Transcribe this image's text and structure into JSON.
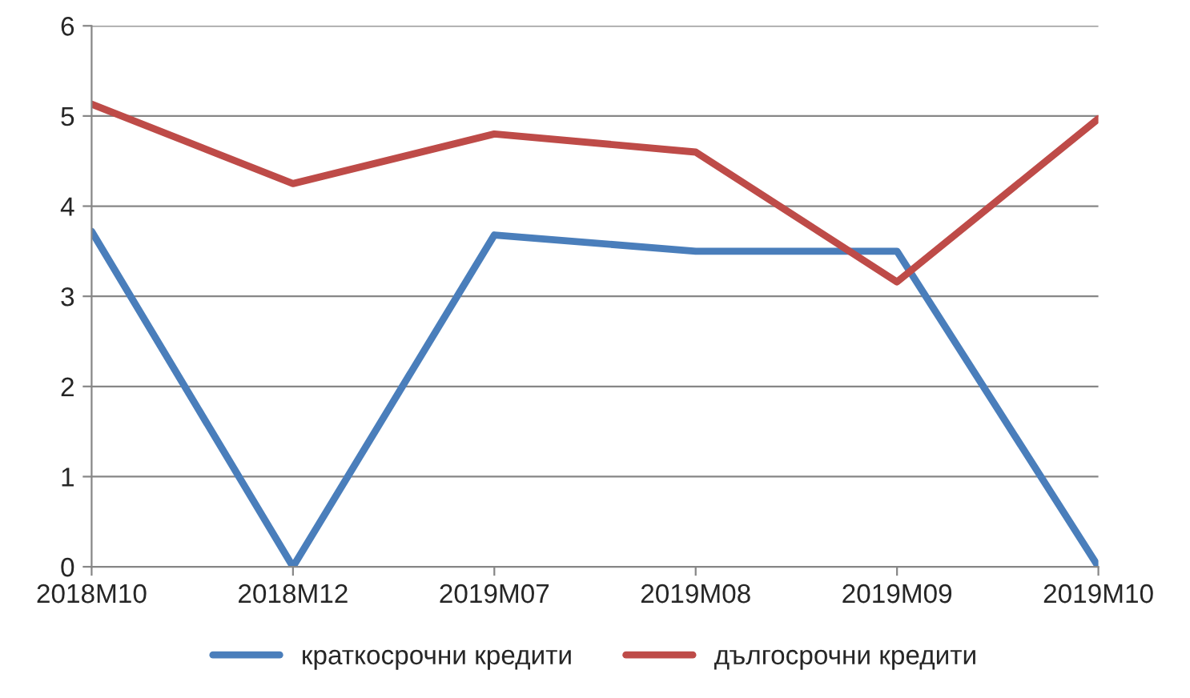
{
  "chart_data": {
    "type": "line",
    "categories": [
      "2018M10",
      "2018M12",
      "2019M07",
      "2019M08",
      "2019M09",
      "2019M10"
    ],
    "series": [
      {
        "name": "краткосрочни кредити",
        "color": "#4a7ebb",
        "values": [
          3.72,
          0,
          3.68,
          3.5,
          3.5,
          0
        ]
      },
      {
        "name": "дългосрочни кредити",
        "color": "#be4b48",
        "values": [
          5.13,
          4.25,
          4.8,
          4.6,
          3.16,
          4.97
        ]
      }
    ],
    "ylim": [
      0,
      6
    ],
    "yticks": [
      0,
      1,
      2,
      3,
      4,
      5,
      6
    ],
    "grid": "y",
    "legend": "bottom",
    "marker": "none",
    "line_style": "solid"
  }
}
